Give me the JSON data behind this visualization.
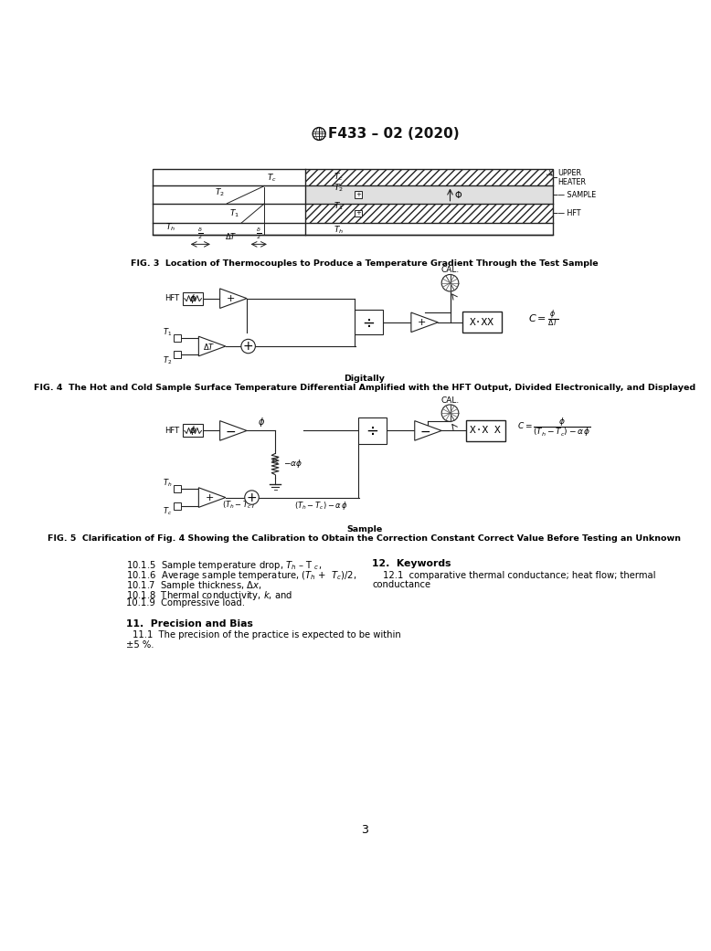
{
  "title": "F433 – 02 (2020)",
  "page_number": "3",
  "bg_color": "#ffffff",
  "text_color": "#000000",
  "fig3_caption": "FIG. 3  Location of Thermocouples to Produce a Temperature Gradient Through the Test Sample",
  "fig4_caption_line1": "FIG. 4  The Hot and Cold Sample Surface Temperature Differential Amplified with the HFT Output, Divided Electronically, and Displayed",
  "fig4_caption_line2": "Digitally",
  "fig5_caption_line1": "FIG. 5  Clarification of Fig. 4 Showing the Calibration to Obtain the Correction Constant Correct Value Before Testing an Unknown",
  "fig5_caption_line2": "Sample",
  "section10_items": [
    "10.1.5  Sample temperature drop, $T_h$ – T $_{c}$,",
    "10.1.6  Average sample temperature, ($T_h$ +  $T_c$)/2,",
    "10.1.7  Sample thickness, Δx,",
    "10.1.8  Thermal conductivity, k, and",
    "10.1.9  Compressive load."
  ],
  "section11_title": "11.  Precision and Bias",
  "section11_text_line1": "11.1  The precision of the practice is expected to be within",
  "section11_text_line2": "±5 %.",
  "section12_title": "12.  Keywords",
  "section12_text": "12.1  comparative thermal conductance; heat flow; thermal\nconductance"
}
